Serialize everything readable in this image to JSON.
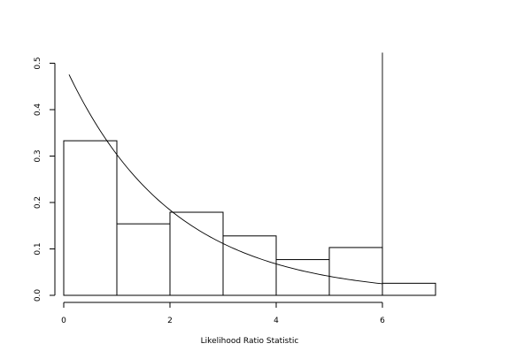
{
  "chart_data": {
    "type": "bar",
    "title": "",
    "xlabel": "Likelihood Ratio Statistic",
    "ylabel": "",
    "xlim": [
      0,
      7
    ],
    "ylim": [
      0,
      0.5
    ],
    "grid": false,
    "bins": [
      {
        "x0": 0,
        "x1": 1,
        "density": 0.333
      },
      {
        "x0": 1,
        "x1": 2,
        "density": 0.154
      },
      {
        "x0": 2,
        "x1": 3,
        "density": 0.179
      },
      {
        "x0": 3,
        "x1": 4,
        "density": 0.128
      },
      {
        "x0": 4,
        "x1": 5,
        "density": 0.077
      },
      {
        "x0": 5,
        "x1": 6,
        "density": 0.103
      },
      {
        "x0": 6,
        "x1": 7,
        "density": 0.026
      }
    ],
    "curve": {
      "function": "exponential density, rate 0.5",
      "rate": 0.5,
      "x_from": 0.1,
      "x_to": 6
    },
    "vline": {
      "x": 6
    },
    "x_ticks": [
      0,
      2,
      4,
      6
    ],
    "x_tick_labels": [
      "0",
      "2",
      "4",
      "6"
    ],
    "y_ticks": [
      0.0,
      0.1,
      0.2,
      0.3,
      0.4,
      0.5
    ],
    "y_tick_labels": [
      "0.0",
      "0.1",
      "0.2",
      "0.3",
      "0.4",
      "0.5"
    ],
    "colors": {
      "bar_stroke": "#000000",
      "curve": "#000000",
      "background": "#ffffff"
    }
  }
}
